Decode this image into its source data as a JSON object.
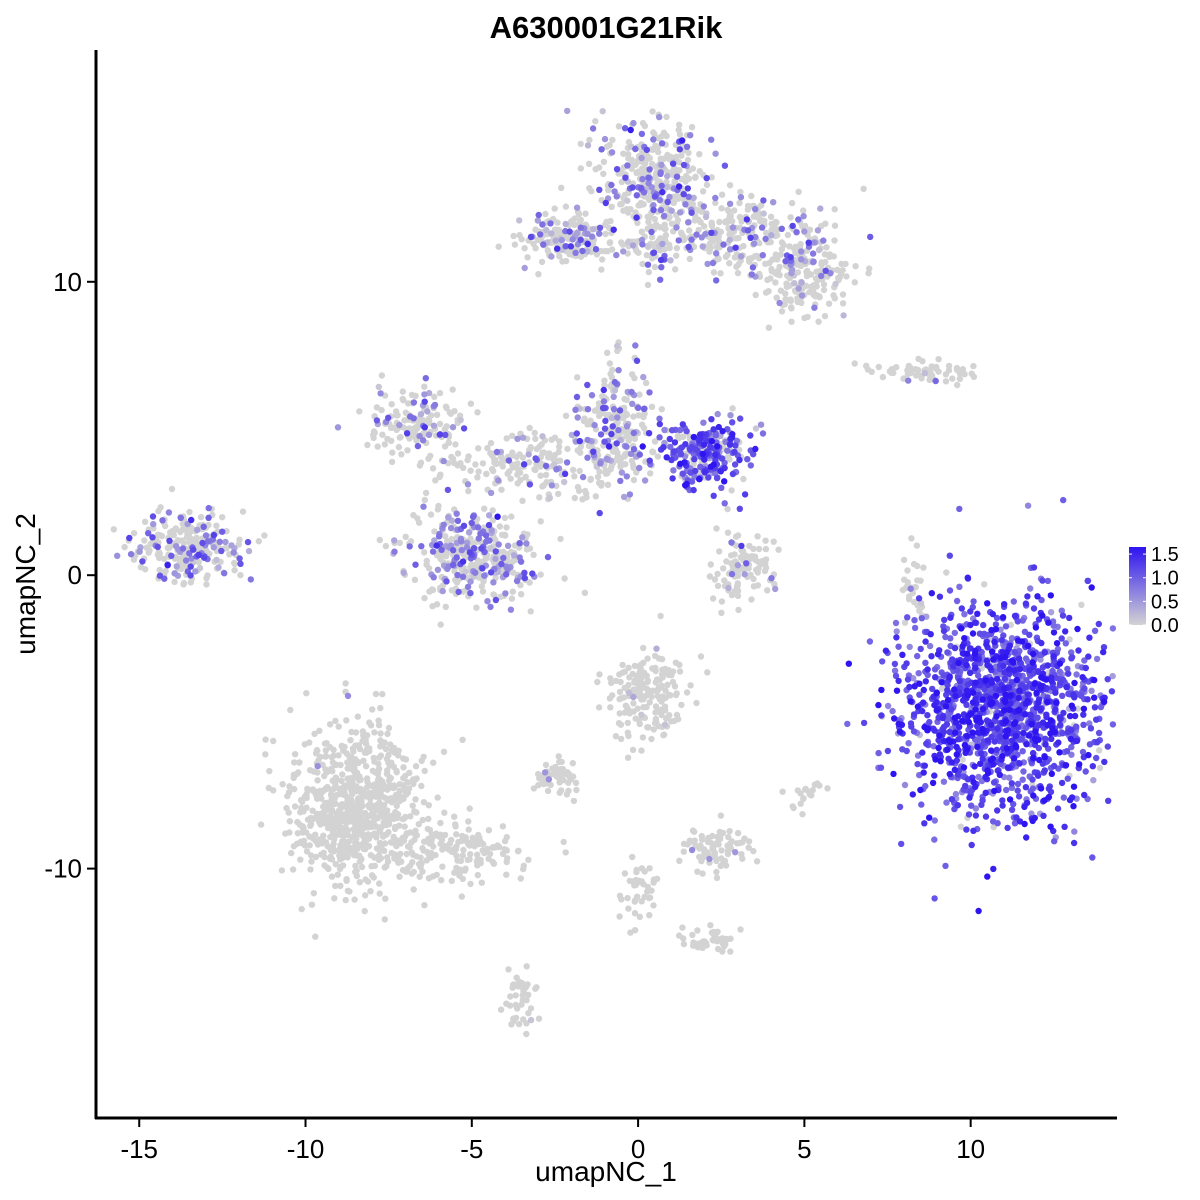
{
  "chart_data": {
    "type": "scatter",
    "title": "A630001G21Rik",
    "xlabel": "umapNC_1",
    "ylabel": "umapNC_2",
    "xlim": [
      -16.3,
      14.4
    ],
    "ylim": [
      -18.5,
      17.9
    ],
    "xticks": [
      -15,
      -10,
      -5,
      0,
      5,
      10
    ],
    "xtick_labels": [
      "-15",
      "-10",
      "-5",
      "0",
      "5",
      "10"
    ],
    "yticks": [
      -10,
      0,
      10
    ],
    "ytick_labels": [
      "-10",
      "0",
      "10"
    ],
    "grid": false,
    "legend": {
      "placement": "right",
      "type": "colorbar",
      "ticks": [
        0.0,
        0.5,
        1.0,
        1.5
      ],
      "tick_labels": [
        "0.0",
        "0.5",
        "1.0",
        "1.5"
      ],
      "range": [
        0.0,
        1.65
      ]
    },
    "color_scale": {
      "low": "#d3d3d3",
      "high": "#2e14f0"
    },
    "clusters": [
      {
        "cx": 11.0,
        "cy": -4.5,
        "sx": 1.5,
        "sy": 1.8,
        "n": 1500,
        "expr": 0.95
      },
      {
        "cx": 0.5,
        "cy": 13.5,
        "sx": 0.8,
        "sy": 1.0,
        "n": 350,
        "expr": 0.45
      },
      {
        "cx": 3.0,
        "cy": 11.6,
        "sx": 1.5,
        "sy": 0.7,
        "n": 300,
        "expr": 0.45
      },
      {
        "cx": 5.0,
        "cy": 10.0,
        "sx": 0.8,
        "sy": 0.6,
        "n": 150,
        "expr": 0.3
      },
      {
        "cx": -2.3,
        "cy": 11.5,
        "sx": 0.6,
        "sy": 0.4,
        "n": 150,
        "expr": 0.5
      },
      {
        "cx": -0.5,
        "cy": 11.2,
        "sx": 1.2,
        "sy": 0.2,
        "n": 60,
        "expr": 0.3
      },
      {
        "cx": 2.0,
        "cy": 4.2,
        "sx": 0.7,
        "sy": 0.6,
        "n": 280,
        "expr": 0.8
      },
      {
        "cx": -0.7,
        "cy": 5.0,
        "sx": 0.6,
        "sy": 1.0,
        "n": 220,
        "expr": 0.5
      },
      {
        "cx": -3.0,
        "cy": 3.8,
        "sx": 1.5,
        "sy": 0.6,
        "n": 200,
        "expr": 0.35
      },
      {
        "cx": -6.7,
        "cy": 5.3,
        "sx": 0.7,
        "sy": 0.6,
        "n": 150,
        "expr": 0.45
      },
      {
        "cx": -5.0,
        "cy": 0.7,
        "sx": 0.9,
        "sy": 0.8,
        "n": 380,
        "expr": 0.5
      },
      {
        "cx": -13.5,
        "cy": 1.0,
        "sx": 0.8,
        "sy": 0.6,
        "n": 250,
        "expr": 0.5
      },
      {
        "cx": 3.3,
        "cy": 0.2,
        "sx": 0.5,
        "sy": 0.6,
        "n": 100,
        "expr": 0.3
      },
      {
        "cx": 8.8,
        "cy": 6.9,
        "sx": 0.9,
        "sy": 0.2,
        "n": 60,
        "expr": 0.35
      },
      {
        "cx": -8.5,
        "cy": -8.0,
        "sx": 1.0,
        "sy": 1.4,
        "n": 750,
        "expr": 0.02
      },
      {
        "cx": -5.5,
        "cy": -9.5,
        "sx": 1.2,
        "sy": 0.5,
        "n": 150,
        "expr": 0.02
      },
      {
        "cx": -3.5,
        "cy": -14.5,
        "sx": 0.25,
        "sy": 0.6,
        "n": 40,
        "expr": 0.1
      },
      {
        "cx": 0.2,
        "cy": -4.0,
        "sx": 0.6,
        "sy": 0.8,
        "n": 180,
        "expr": 0.15
      },
      {
        "cx": -2.4,
        "cy": -6.9,
        "sx": 0.4,
        "sy": 0.3,
        "n": 50,
        "expr": 0.2
      },
      {
        "cx": 2.3,
        "cy": -9.3,
        "sx": 0.6,
        "sy": 0.4,
        "n": 80,
        "expr": 0.15
      },
      {
        "cx": 2.2,
        "cy": -12.5,
        "sx": 0.5,
        "sy": 0.2,
        "n": 40,
        "expr": 0.05
      },
      {
        "cx": 0.0,
        "cy": -11.0,
        "sx": 0.3,
        "sy": 0.6,
        "n": 40,
        "expr": 0.15
      },
      {
        "cx": 8.3,
        "cy": -0.5,
        "sx": 0.2,
        "sy": 0.8,
        "n": 30,
        "expr": 0.4
      },
      {
        "cx": 5.0,
        "cy": -7.5,
        "sx": 0.3,
        "sy": 0.3,
        "n": 20,
        "expr": 0.05
      }
    ]
  }
}
